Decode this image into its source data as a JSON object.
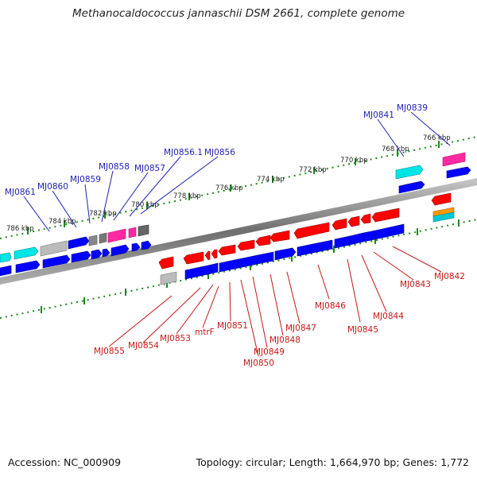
{
  "header": {
    "title": "Methanocaldococcus jannaschii DSM 2661, complete genome"
  },
  "footer": {
    "accession": "Accession: NC_000909",
    "topology": "Topology: circular; Length: 1,664,970 bp; Genes: 1,772"
  },
  "scale": {
    "labels": [
      "786 kbp",
      "784 kbp",
      "782 kbp",
      "780 kbp",
      "778 kbp",
      "776 kbp",
      "774 kbp",
      "772 kbp",
      "770 kbp",
      "768 kbp",
      "766 kbp"
    ]
  },
  "genes_upper": [
    "MJ0861",
    "MJ0860",
    "MJ0859",
    "MJ0858",
    "MJ0857",
    "MJ0856.1",
    "MJ0856",
    "MJ0841",
    "MJ0839"
  ],
  "genes_lower": [
    "MJ0855",
    "MJ0854",
    "MJ0853",
    "mtrF",
    "MJ0851",
    "MJ0850",
    "MJ0849",
    "MJ0848",
    "MJ0847",
    "MJ0846",
    "MJ0845",
    "MJ0844",
    "MJ0843",
    "MJ0842"
  ],
  "colors": {
    "forward": "#ff0000",
    "reverse": "#0000ff",
    "cyan": "#00e5e5",
    "magenta": "#ff2aa0",
    "grey": "#888888",
    "orange": "#ff9900",
    "backbone": "#7a7a7a",
    "ticks": "#1a8a1a"
  }
}
